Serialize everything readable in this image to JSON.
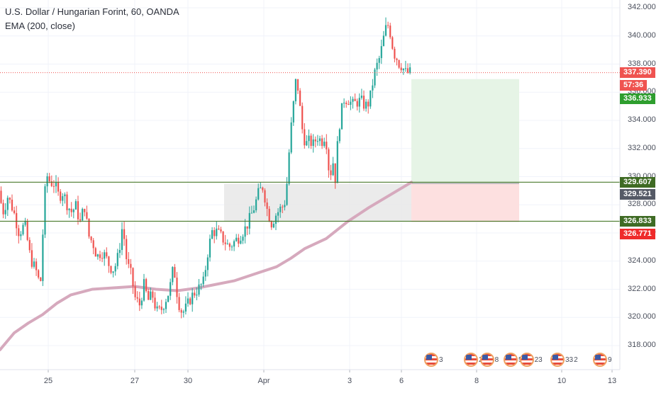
{
  "header": {
    "symbol_line": "U.S. Dollar / Hungarian Forint, 60, OANDA",
    "indicator_line": "EMA (200, close)"
  },
  "colors": {
    "up": "#26a69a",
    "down": "#ef5350",
    "ema": "#d6a9bd",
    "level_line": "#4a7a2c",
    "current_price": "#ef5350",
    "target_tag": "#2e9e2e",
    "profit_zone": "#e6f4e6",
    "loss_zone": "#fde0e0",
    "range_box": "#e8e8e8"
  },
  "price_tags": {
    "current": "337.390",
    "countdown": "57:36",
    "target": "336.933",
    "upper_level": "329.607",
    "entry": "329.521",
    "lower_level": "326.833",
    "stop": "326.771"
  },
  "event_badges": [
    {
      "count": "3"
    },
    {
      "count": "2"
    },
    {
      "count": "8"
    },
    {
      "count": "5"
    },
    {
      "count": "23"
    },
    {
      "count": "33"
    },
    {
      "count": "2"
    },
    {
      "count": "9"
    }
  ],
  "chart_data": {
    "type": "candlestick",
    "title": "U.S. Dollar / Hungarian Forint, 60, OANDA",
    "ylabel": "",
    "xlabel": "",
    "ylim": [
      316.2,
      342.6
    ],
    "y_ticks": [
      "342.000",
      "340.000",
      "338.000",
      "336.000",
      "334.000",
      "332.000",
      "330.000",
      "328.000",
      "326.000",
      "324.000",
      "322.000",
      "320.000",
      "318.000"
    ],
    "x_ticks": [
      {
        "label": "25",
        "x": 68
      },
      {
        "label": "27",
        "x": 190
      },
      {
        "label": "30",
        "x": 265
      },
      {
        "label": "Apr",
        "x": 372
      },
      {
        "label": "3",
        "x": 493
      },
      {
        "label": "6",
        "x": 566
      },
      {
        "label": "8",
        "x": 672
      },
      {
        "label": "10",
        "x": 792
      },
      {
        "label": "13",
        "x": 863
      }
    ],
    "price_path": [
      [
        0,
        329.0
      ],
      [
        8,
        327.5
      ],
      [
        14,
        328.6
      ],
      [
        22,
        327.6
      ],
      [
        30,
        326.0
      ],
      [
        38,
        326.6
      ],
      [
        46,
        324.2
      ],
      [
        54,
        323.3
      ],
      [
        60,
        322.2
      ],
      [
        64,
        326.5
      ],
      [
        68,
        330.2
      ],
      [
        74,
        329.6
      ],
      [
        80,
        329.5
      ],
      [
        86,
        328.6
      ],
      [
        92,
        328.9
      ],
      [
        98,
        328.0
      ],
      [
        104,
        327.5
      ],
      [
        110,
        327.9
      ],
      [
        116,
        326.7
      ],
      [
        122,
        328.0
      ],
      [
        128,
        325.8
      ],
      [
        134,
        325.3
      ],
      [
        140,
        324.3
      ],
      [
        146,
        324.7
      ],
      [
        152,
        324.3
      ],
      [
        158,
        323.6
      ],
      [
        164,
        323.4
      ],
      [
        170,
        324.4
      ],
      [
        176,
        326.6
      ],
      [
        182,
        323.9
      ],
      [
        188,
        323.0
      ],
      [
        194,
        321.3
      ],
      [
        200,
        320.9
      ],
      [
        206,
        322.3
      ],
      [
        212,
        321.2
      ],
      [
        218,
        321.6
      ],
      [
        224,
        320.4
      ],
      [
        230,
        320.5
      ],
      [
        236,
        321.2
      ],
      [
        242,
        321.9
      ],
      [
        248,
        323.7
      ],
      [
        254,
        321.2
      ],
      [
        260,
        320.3
      ],
      [
        266,
        320.7
      ],
      [
        272,
        321.4
      ],
      [
        278,
        321.8
      ],
      [
        284,
        322.1
      ],
      [
        290,
        322.5
      ],
      [
        296,
        324.6
      ],
      [
        302,
        326.1
      ],
      [
        308,
        326.1
      ],
      [
        314,
        325.8
      ],
      [
        320,
        325.4
      ],
      [
        326,
        325.0
      ],
      [
        332,
        325.3
      ],
      [
        338,
        325.6
      ],
      [
        344,
        326.0
      ],
      [
        350,
        326.4
      ],
      [
        356,
        327.1
      ],
      [
        362,
        327.9
      ],
      [
        368,
        328.9
      ],
      [
        374,
        329.3
      ],
      [
        380,
        327.6
      ],
      [
        386,
        326.7
      ],
      [
        392,
        327.3
      ],
      [
        398,
        327.7
      ],
      [
        404,
        328.0
      ],
      [
        408,
        329.7
      ],
      [
        412,
        332.7
      ],
      [
        416,
        334.7
      ],
      [
        420,
        336.7
      ],
      [
        424,
        336.2
      ],
      [
        428,
        333.7
      ],
      [
        432,
        332.7
      ],
      [
        436,
        332.3
      ],
      [
        440,
        332.6
      ],
      [
        444,
        332.2
      ],
      [
        448,
        332.6
      ],
      [
        452,
        332.9
      ],
      [
        456,
        332.4
      ],
      [
        460,
        332.9
      ],
      [
        464,
        332.3
      ],
      [
        468,
        329.7
      ],
      [
        472,
        331.3
      ],
      [
        476,
        329.8
      ],
      [
        480,
        333.1
      ],
      [
        484,
        334.5
      ],
      [
        488,
        335.5
      ],
      [
        494,
        335.5
      ],
      [
        500,
        335.1
      ],
      [
        506,
        335.3
      ],
      [
        512,
        335.4
      ],
      [
        518,
        335.0
      ],
      [
        524,
        335.3
      ],
      [
        530,
        337.1
      ],
      [
        534,
        337.8
      ],
      [
        538,
        338.4
      ],
      [
        542,
        339.3
      ],
      [
        546,
        340.4
      ],
      [
        550,
        340.8
      ],
      [
        554,
        340.1
      ],
      [
        558,
        338.8
      ],
      [
        562,
        338.5
      ],
      [
        566,
        338.0
      ],
      [
        570,
        337.9
      ],
      [
        574,
        337.4
      ],
      [
        580,
        337.4
      ]
    ],
    "ema_path": [
      [
        0,
        317.7
      ],
      [
        20,
        318.9
      ],
      [
        40,
        319.6
      ],
      [
        60,
        320.2
      ],
      [
        80,
        321.0
      ],
      [
        100,
        321.6
      ],
      [
        130,
        322.0
      ],
      [
        160,
        322.1
      ],
      [
        190,
        322.2
      ],
      [
        220,
        322.0
      ],
      [
        250,
        321.9
      ],
      [
        280,
        322.1
      ],
      [
        300,
        322.3
      ],
      [
        330,
        322.6
      ],
      [
        360,
        323.1
      ],
      [
        390,
        323.6
      ],
      [
        410,
        324.2
      ],
      [
        430,
        324.9
      ],
      [
        460,
        325.6
      ],
      [
        490,
        326.8
      ],
      [
        520,
        327.8
      ],
      [
        550,
        328.7
      ],
      [
        580,
        329.6
      ]
    ],
    "levels": {
      "upper": 329.607,
      "lower": 326.833,
      "current": 337.39
    },
    "range_box": {
      "x_start": 316,
      "x_end": 580,
      "y_top": 329.5,
      "y_bottom": 326.8
    },
    "position": {
      "x_start": 580,
      "x_end": 732,
      "target": 336.933,
      "entry": 329.521,
      "stop": 326.771
    }
  }
}
